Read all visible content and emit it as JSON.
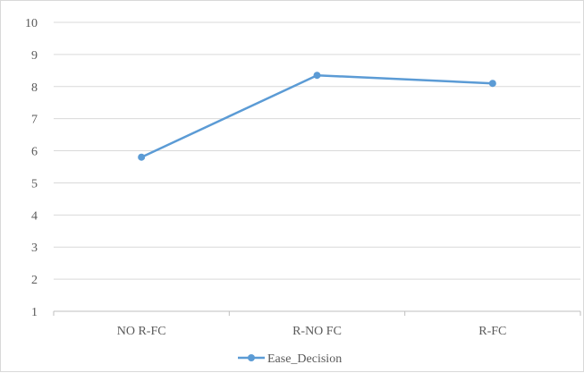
{
  "chart_data": {
    "type": "line",
    "categories": [
      "NO R-FC",
      "R-NO FC",
      "R-FC"
    ],
    "series": [
      {
        "name": "Ease_Decision",
        "values": [
          5.8,
          8.35,
          8.1
        ]
      }
    ],
    "ylim": [
      1,
      10
    ],
    "yticks": [
      "1",
      "2",
      "3",
      "4",
      "5",
      "6",
      "7",
      "8",
      "9",
      "10"
    ],
    "grid": true,
    "legend_position": "bottom",
    "series_color": "#5b9bd5",
    "grid_color": "#d9d9d9",
    "axis_color": "#bfbfbf"
  }
}
